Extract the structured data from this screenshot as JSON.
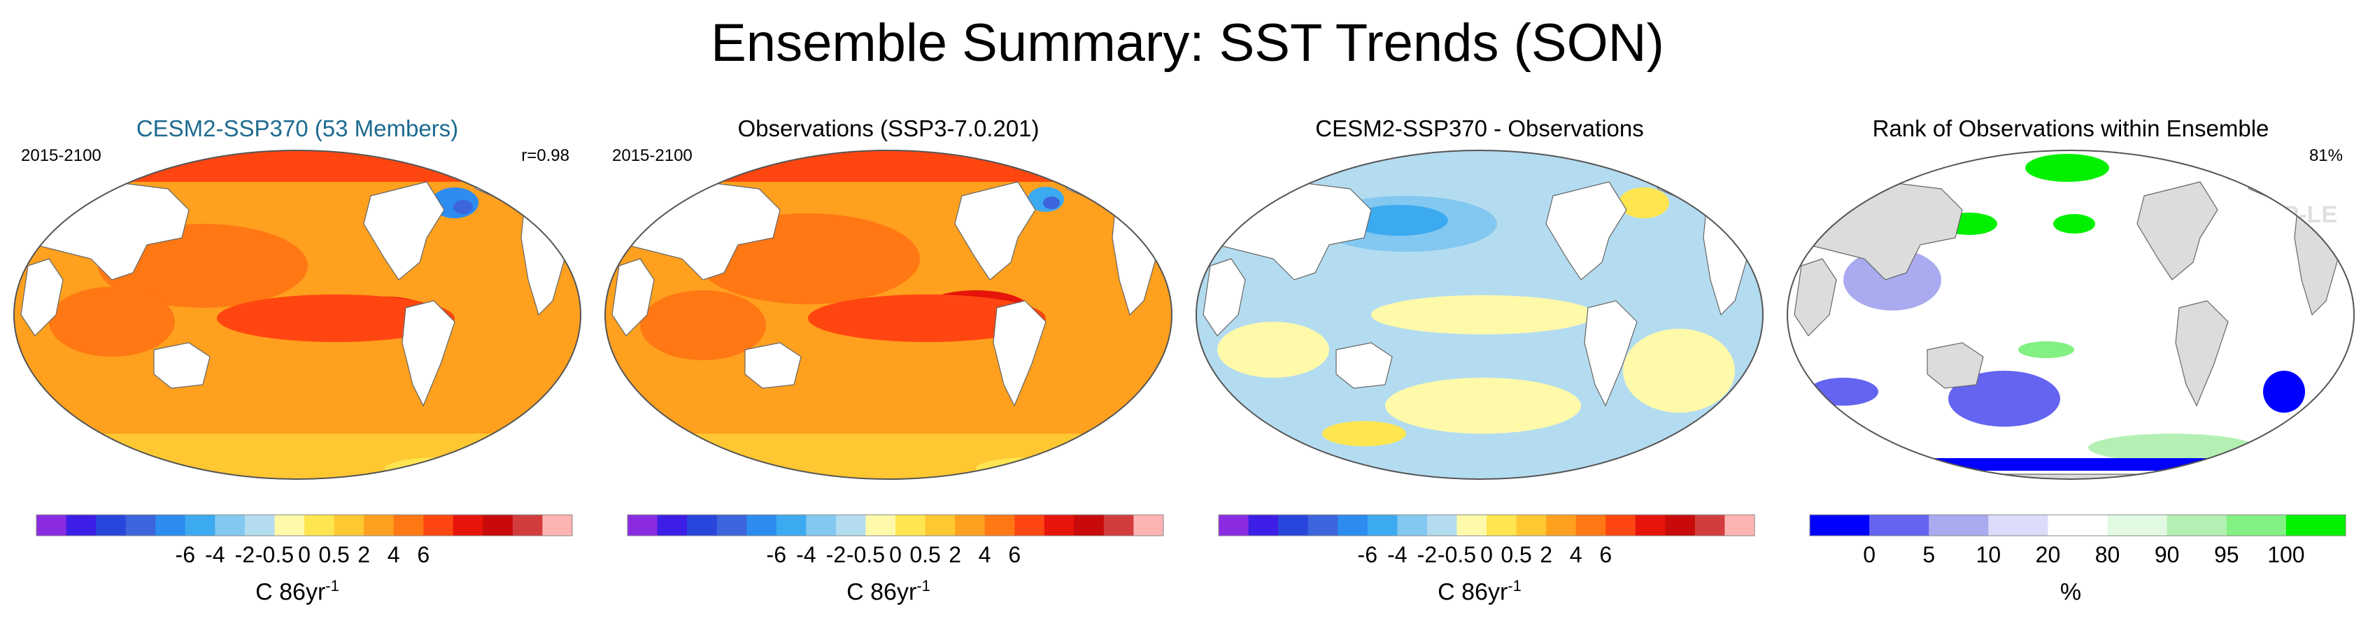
{
  "title": "Ensemble Summary: SST Trends (SON)",
  "watermark": "© CVDP-LE",
  "panels": [
    {
      "title": "CESM2-SSP370 (53 Members)",
      "left_label": "2015-2100",
      "right_label": "r=0.98",
      "unit_base": "C 86yr",
      "unit_exp": "-1"
    },
    {
      "title": "Observations (SSP3-7.0.201)",
      "left_label": "2015-2100",
      "right_label": "",
      "unit_base": "C 86yr",
      "unit_exp": "-1"
    },
    {
      "title": "CESM2-SSP370 - Observations",
      "left_label": "",
      "right_label": "",
      "unit_base": "C 86yr",
      "unit_exp": "-1"
    },
    {
      "title": "Rank of Observations within Ensemble",
      "left_label": "",
      "right_label": "81%",
      "unit_base": "%",
      "unit_exp": ""
    }
  ],
  "chart_data": [
    {
      "type": "heatmap",
      "title": "CESM2-SSP370 (53 Members)",
      "subtitle_left": "2015-2100",
      "subtitle_right": "r=0.98",
      "units": "C 86yr-1",
      "colorbar": {
        "tick_labels": [
          "-6",
          "-4",
          "-2",
          "-0.5",
          "0",
          "0.5",
          "2",
          "4",
          "6"
        ],
        "colors": [
          "#8a2be2",
          "#3c1ee6",
          "#2846dc",
          "#3c64dc",
          "#2c8cf0",
          "#3caaf0",
          "#82c8f0",
          "#b4dcf0",
          "#fffaaa",
          "#ffe650",
          "#ffc832",
          "#ffa01e",
          "#ff7814",
          "#ff4610",
          "#e6140a",
          "#c80a0a",
          "#d23c3c",
          "#ffb4b4"
        ]
      },
      "regions": {
        "ocean_dominant": "orange (2 to 4)",
        "tropical_east_pacific": "red (4 to 6)",
        "north_atlantic": "blue (-2 to 0)",
        "southern_ocean": "yellow (0.5 to 2)"
      }
    },
    {
      "type": "heatmap",
      "title": "Observations (SSP3-7.0.201)",
      "subtitle_left": "2015-2100",
      "units": "C 86yr-1",
      "colorbar": {
        "tick_labels": [
          "-6",
          "-4",
          "-2",
          "-0.5",
          "0",
          "0.5",
          "2",
          "4",
          "6"
        ],
        "colors": [
          "#8a2be2",
          "#3c1ee6",
          "#2846dc",
          "#3c64dc",
          "#2c8cf0",
          "#3caaf0",
          "#82c8f0",
          "#b4dcf0",
          "#fffaaa",
          "#ffe650",
          "#ffc832",
          "#ffa01e",
          "#ff7814",
          "#ff4610",
          "#e6140a",
          "#c80a0a",
          "#d23c3c",
          "#ffb4b4"
        ]
      },
      "regions": {
        "ocean_dominant": "orange (2 to 4)",
        "tropical_east_pacific": "red (4 to 6)",
        "north_atlantic": "blue (-2 to 0)",
        "southern_ocean": "yellow (0.5 to 2)"
      }
    },
    {
      "type": "heatmap",
      "title": "CESM2-SSP370 - Observations",
      "units": "C 86yr-1",
      "colorbar": {
        "tick_labels": [
          "-6",
          "-4",
          "-2",
          "-0.5",
          "0",
          "0.5",
          "2",
          "4",
          "6"
        ],
        "colors": [
          "#8a2be2",
          "#3c1ee6",
          "#2846dc",
          "#3c64dc",
          "#2c8cf0",
          "#3caaf0",
          "#82c8f0",
          "#b4dcf0",
          "#fffaaa",
          "#ffe650",
          "#ffc832",
          "#ffa01e",
          "#ff7814",
          "#ff4610",
          "#e6140a",
          "#c80a0a",
          "#d23c3c",
          "#ffb4b4"
        ]
      },
      "regions": {
        "ocean_dominant": "light blue / pale yellow (-0.5 to 0.5)",
        "north_pacific": "blue (-2 to -0.5)",
        "north_atlantic": "yellow (0.5 to 2)"
      }
    },
    {
      "type": "heatmap",
      "title": "Rank of Observations within Ensemble",
      "subtitle_right": "81%",
      "units": "%",
      "colorbar": {
        "tick_labels": [
          "0",
          "5",
          "10",
          "20",
          "80",
          "90",
          "95",
          "100"
        ],
        "colors": [
          "#0000ff",
          "#6464f0",
          "#aaaaf0",
          "#dcdcfa",
          "#ffffff",
          "#e1fae1",
          "#b4f0b4",
          "#82f082",
          "#00f000"
        ]
      },
      "regions": {
        "ocean_dominant": "white (20 to 80)",
        "southern_ocean": "blue (0 to 10)",
        "north_pacific": "green (95 to 100)",
        "land": "grey"
      }
    }
  ]
}
